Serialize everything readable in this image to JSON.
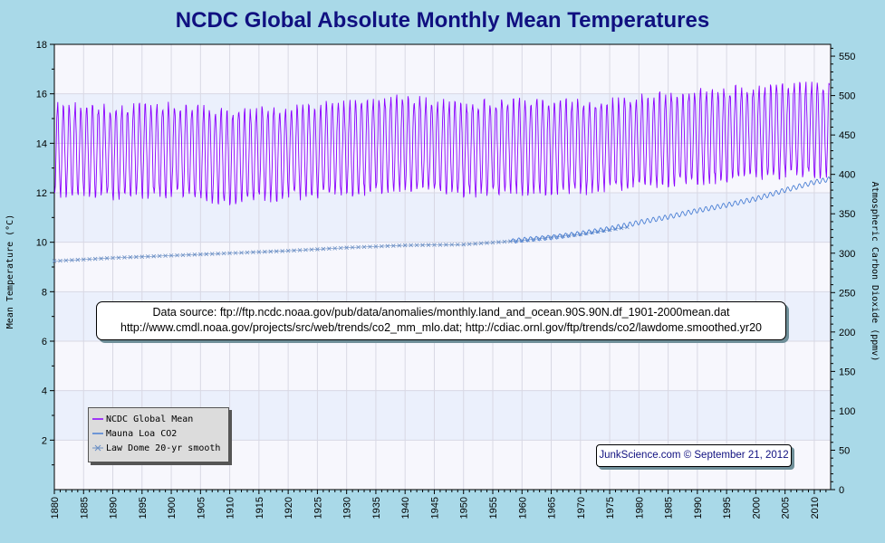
{
  "chart_data": {
    "type": "line",
    "title": "NCDC Global Absolute Monthly Mean Temperatures",
    "xlabel": "",
    "ylabel": "Mean Temperature (°C)",
    "y2label": "Atmospheric Carbon Dioxide (ppmv)",
    "xlim": [
      1880,
      2012.8
    ],
    "ylim": [
      0,
      18
    ],
    "y2lim": [
      0,
      565
    ],
    "grid": true,
    "legend_position": "bottom-left",
    "x_ticks": [
      "1880",
      "1885",
      "1890",
      "1895",
      "1900",
      "1905",
      "1910",
      "1915",
      "1920",
      "1925",
      "1930",
      "1935",
      "1940",
      "1945",
      "1950",
      "1955",
      "1960",
      "1965",
      "1970",
      "1975",
      "1980",
      "1985",
      "1990",
      "1995",
      "2000",
      "2005",
      "2010"
    ],
    "y_ticks": [
      "2",
      "4",
      "6",
      "8",
      "10",
      "12",
      "14",
      "16",
      "18"
    ],
    "y2_ticks": [
      "0",
      "50",
      "100",
      "150",
      "200",
      "250",
      "300",
      "350",
      "400",
      "450",
      "500",
      "550"
    ],
    "series": [
      {
        "name": "NCDC Global Mean",
        "axis": "left",
        "color": "#8b00ff",
        "description_values": "monthly absolute temperature; seasonal cycle",
        "years": [
          1880,
          1890,
          1900,
          1910,
          1920,
          1930,
          1940,
          1950,
          1960,
          1970,
          1980,
          1990,
          2000,
          2010,
          2012
        ],
        "monthly_max": [
          15.6,
          15.5,
          15.6,
          15.3,
          15.5,
          15.7,
          15.9,
          15.6,
          15.8,
          15.7,
          15.9,
          16.1,
          16.3,
          16.4,
          16.4
        ],
        "monthly_min": [
          11.9,
          11.8,
          11.9,
          11.6,
          11.8,
          11.9,
          12.1,
          11.9,
          12.0,
          12.0,
          12.2,
          12.4,
          12.6,
          12.7,
          12.7
        ]
      },
      {
        "name": "Mauna Loa CO2",
        "axis": "right",
        "color": "#4a7fd4",
        "x": [
          1958.2,
          1960,
          1965,
          1970,
          1975,
          1980,
          1985,
          1990,
          1995,
          2000,
          2005,
          2010,
          2012.7
        ],
        "values": [
          315,
          317,
          320,
          325,
          331,
          339,
          346,
          354,
          361,
          369,
          380,
          390,
          394
        ]
      },
      {
        "name": "Law Dome 20-yr smooth",
        "axis": "right",
        "color": "#6b8fc4",
        "x": [
          1880,
          1890,
          1900,
          1910,
          1920,
          1930,
          1940,
          1950,
          1960,
          1970,
          1978
        ],
        "values": [
          290,
          294,
          297,
          300,
          303,
          307,
          310,
          311,
          316,
          324,
          333
        ]
      }
    ]
  },
  "source_note": {
    "line1": "Data source: ftp://ftp.ncdc.noaa.gov/pub/data/anomalies/monthly.land_and_ocean.90S.90N.df_1901-2000mean.dat",
    "line2": "http://www.cmdl.noaa.gov/projects/src/web/trends/co2_mm_mlo.dat; http://cdiac.ornl.gov/ftp/trends/co2/lawdome.smoothed.yr20"
  },
  "credit": "JunkScience.com © September 21, 2012",
  "colors": {
    "background": "#a9d9e8",
    "plot_band_light": "#f7f7fd",
    "plot_band_dark": "#ebf0fc",
    "temperature_line": "#8b00ff",
    "co2_line": "#4a7fd4",
    "title_color": "#101080"
  }
}
